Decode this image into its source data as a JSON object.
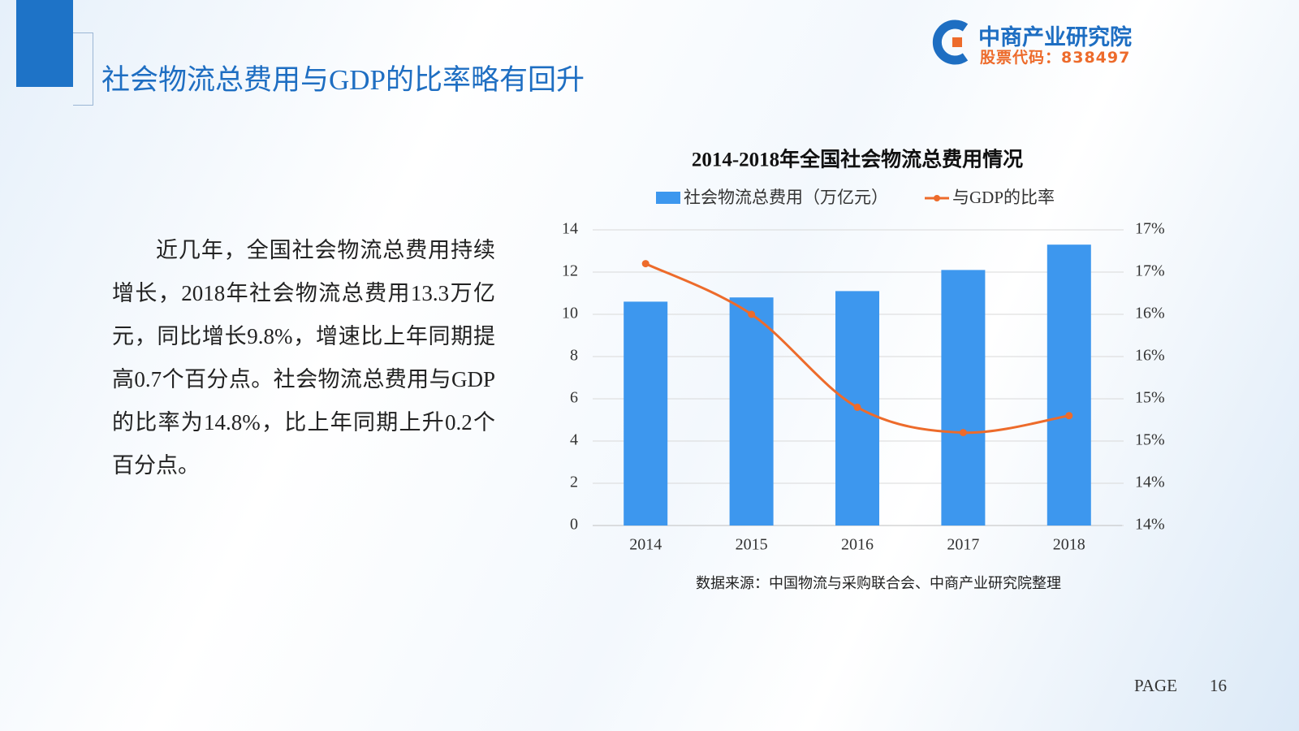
{
  "logo": {
    "name": "中商产业研究院",
    "code": "股票代码：838497"
  },
  "heading": "社会物流总费用与GDP的比率略有回升",
  "paragraph": "近几年，全国社会物流总费用持续增长，2018年社会物流总费用13.3万亿元，同比增长9.8%，增速比上年同期提高0.7个百分点。社会物流总费用与GDP的比率为14.8%，比上年同期上升0.2个百分点。",
  "chart_data": {
    "type": "bar",
    "title": "2014-2018年全国社会物流总费用情况",
    "categories": [
      "2014",
      "2015",
      "2016",
      "2017",
      "2018"
    ],
    "series": [
      {
        "name": "社会物流总费用（万亿元）",
        "type": "bar",
        "color": "#3d97ee",
        "values": [
          10.6,
          10.8,
          11.1,
          12.1,
          13.3
        ]
      },
      {
        "name": "与GDP的比率",
        "type": "line",
        "color": "#ed6b2b",
        "axis": "y2",
        "values": [
          16.6,
          16.0,
          14.9,
          14.6,
          14.8
        ]
      }
    ],
    "ylim": [
      0,
      14
    ],
    "yticks": [
      0,
      2,
      4,
      6,
      8,
      10,
      12,
      14
    ],
    "y2lim": [
      13.5,
      17
    ],
    "y2ticks": [
      {
        "value": 13.5,
        "label": "14%"
      },
      {
        "value": 14,
        "label": "14%"
      },
      {
        "value": 14.5,
        "label": "15%"
      },
      {
        "value": 15,
        "label": "15%"
      },
      {
        "value": 15.5,
        "label": "16%"
      },
      {
        "value": 16,
        "label": "16%"
      },
      {
        "value": 16.5,
        "label": "17%"
      },
      {
        "value": 17,
        "label": "17%"
      }
    ],
    "grid": true,
    "legend": "top",
    "source": "数据来源：中国物流与采购联合会、中商产业研究院整理"
  },
  "page": {
    "label": "PAGE",
    "number": "16"
  }
}
